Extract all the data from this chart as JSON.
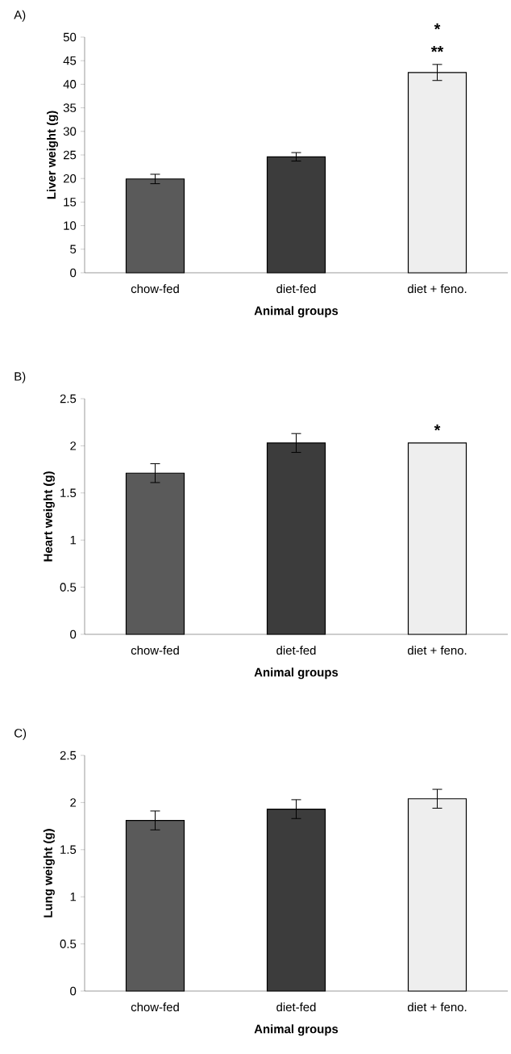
{
  "chart_data": [
    {
      "type": "bar",
      "title": "A)",
      "xlabel": "Animal groups",
      "ylabel": "Liver weight (g)",
      "categories": [
        "chow-fed",
        "diet-fed",
        "diet + feno."
      ],
      "values": [
        19.9,
        24.6,
        42.5
      ],
      "errors": [
        1.0,
        0.9,
        1.7
      ],
      "colors": [
        "#5a5a5a",
        "#3c3c3c",
        "#eeeeee"
      ],
      "ylim": [
        0,
        50
      ],
      "yticks": [
        0,
        5,
        10,
        15,
        20,
        25,
        30,
        35,
        40,
        45,
        50
      ],
      "annotations": [
        "*",
        "**"
      ]
    },
    {
      "type": "bar",
      "title": "B)",
      "xlabel": "Animal groups",
      "ylabel": "Heart weight (g)",
      "categories": [
        "chow-fed",
        "diet-fed",
        "diet + feno."
      ],
      "values": [
        1.71,
        2.03,
        2.03
      ],
      "errors": [
        0.1,
        0.1,
        null
      ],
      "colors": [
        "#5a5a5a",
        "#3c3c3c",
        "#eeeeee"
      ],
      "ylim": [
        0,
        2.5
      ],
      "yticks": [
        0,
        0.5,
        1,
        1.5,
        2,
        2.5
      ],
      "annotations": [
        "*"
      ]
    },
    {
      "type": "bar",
      "title": "C)",
      "xlabel": "Animal groups",
      "ylabel": "Lung weight (g)",
      "categories": [
        "chow-fed",
        "diet-fed",
        "diet + feno."
      ],
      "values": [
        1.81,
        1.93,
        2.04
      ],
      "errors": [
        0.1,
        0.1,
        0.1
      ],
      "colors": [
        "#5a5a5a",
        "#3c3c3c",
        "#eeeeee"
      ],
      "ylim": [
        0,
        2.5
      ],
      "yticks": [
        0,
        0.5,
        1,
        1.5,
        2,
        2.5
      ]
    }
  ]
}
